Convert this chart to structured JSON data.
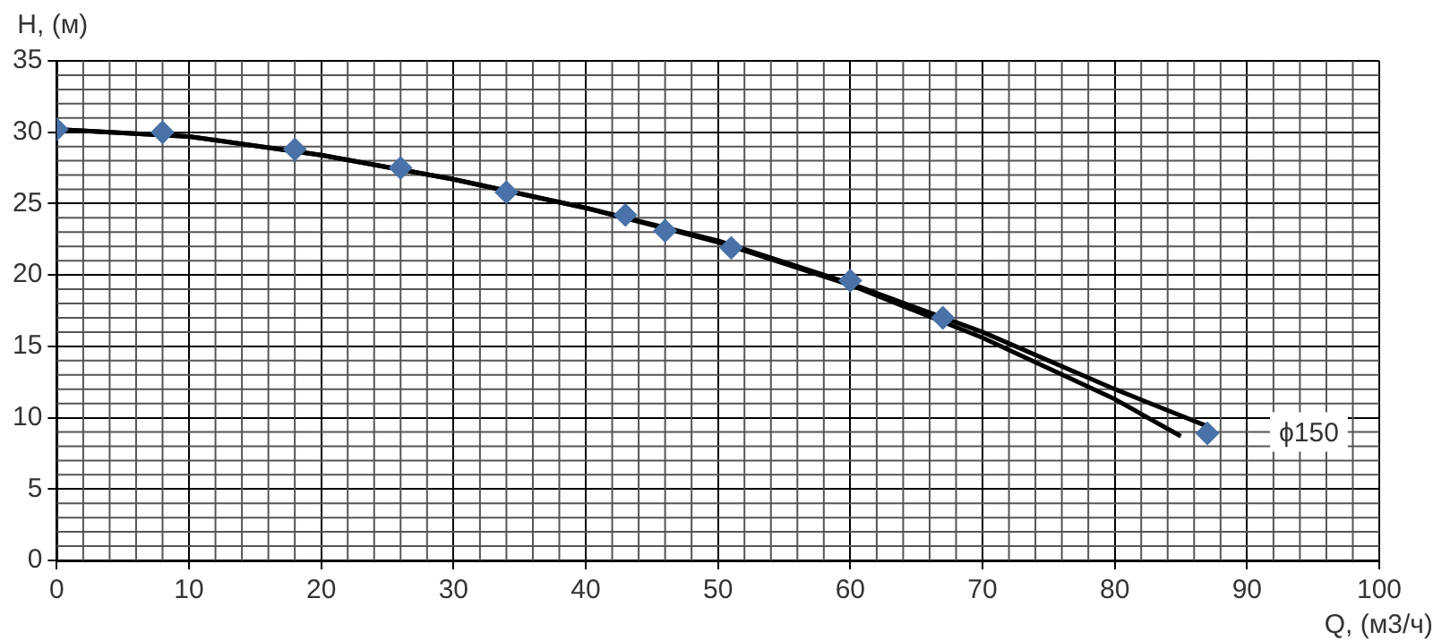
{
  "chart_data": {
    "type": "scatter",
    "xlabel": "Q, (м3/ч)",
    "ylabel": "H, (м)",
    "xlim": [
      0,
      100
    ],
    "xticks": [
      0,
      10,
      20,
      30,
      40,
      50,
      60,
      70,
      80,
      90,
      100
    ],
    "ylim": [
      0,
      35
    ],
    "yticks": [
      0,
      5,
      10,
      15,
      20,
      25,
      30,
      35
    ],
    "grid": true,
    "legend": false,
    "marker": "diamond",
    "series": [
      {
        "color": "#4a72a8",
        "x": [
          0,
          8,
          18,
          26,
          34,
          43,
          46,
          51,
          60,
          67,
          87
        ],
        "values": [
          30.2,
          30,
          28.8,
          27.5,
          25.8,
          24.2,
          23.1,
          21.9,
          19.6,
          17,
          8.9
        ]
      },
      {
        "type": "line",
        "color": "#000000",
        "marker": "none",
        "x": [
          0,
          10,
          20,
          30,
          40,
          50,
          60,
          70,
          80,
          87
        ],
        "values": [
          30.2,
          29.7,
          28.4,
          26.7,
          24.7,
          22.4,
          19.4,
          16,
          12,
          9.4
        ]
      },
      {
        "type": "line",
        "color": "#000000",
        "marker": "none",
        "x": [
          0,
          10,
          20,
          30,
          40,
          50,
          60,
          70,
          80,
          85
        ],
        "values": [
          30.2,
          29.7,
          28.4,
          26.7,
          24.7,
          22.3,
          19.3,
          15.6,
          11.3,
          8.7
        ]
      }
    ],
    "annotations": [
      {
        "text": "ϕ150",
        "x": 87,
        "y": 9
      }
    ]
  }
}
